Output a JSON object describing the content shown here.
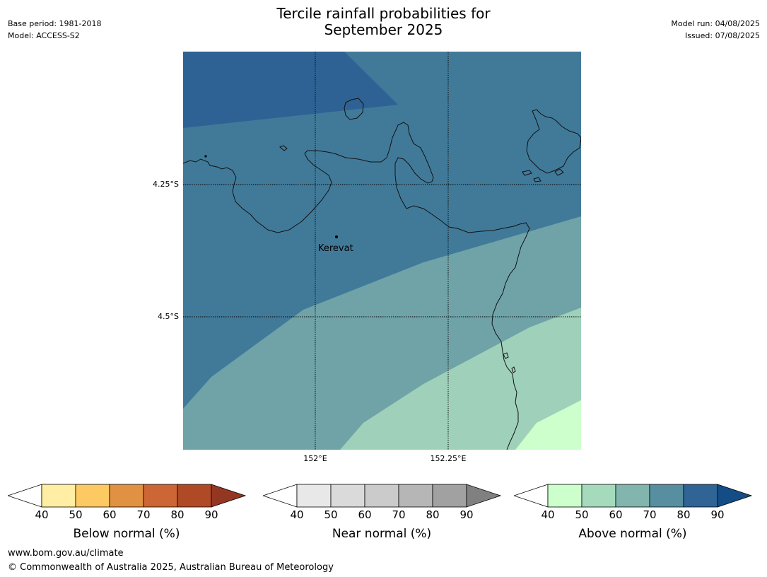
{
  "title": {
    "line1": "Tercile rainfall probabilities for",
    "line2": "September 2025"
  },
  "meta_left": {
    "base_period": "Base period: 1981-2018",
    "model": "Model: ACCESS-S2"
  },
  "meta_right": {
    "model_run": "Model run: 04/08/2025",
    "issued": "Issued: 07/08/2025"
  },
  "map": {
    "place_label": "Kerevat",
    "lat_labels": [
      "4.25°S",
      "4.5°S"
    ],
    "lon_labels": [
      "152°E",
      "152.25°E"
    ],
    "fill_colors": {
      "above_80": "#2e6294",
      "above_70": "#417a99",
      "above_60": "#6fa3a8",
      "above_50": "#9fd0ba",
      "above_40": "#ccffcc"
    }
  },
  "colorbars": [
    {
      "label": "Below normal (%)",
      "ticks": [
        "40",
        "50",
        "60",
        "70",
        "80",
        "90"
      ],
      "colors": [
        "#ffeea3",
        "#fdc962",
        "#e09142",
        "#cc6634",
        "#b04a26"
      ],
      "low_extend": "#ffffff",
      "high_extend": "#943722"
    },
    {
      "label": "Near normal (%)",
      "ticks": [
        "40",
        "50",
        "60",
        "70",
        "80",
        "90"
      ],
      "colors": [
        "#e8e8e8",
        "#dadada",
        "#cbcbcb",
        "#b6b6b6",
        "#a1a1a1"
      ],
      "low_extend": "#ffffff",
      "high_extend": "#808080"
    },
    {
      "label": "Above normal (%)",
      "ticks": [
        "40",
        "50",
        "60",
        "70",
        "80",
        "90"
      ],
      "colors": [
        "#ccffcc",
        "#a5dbbc",
        "#81b5ad",
        "#588fa0",
        "#2f6495"
      ],
      "low_extend": "#ffffff",
      "high_extend": "#144c85"
    }
  ],
  "footer": {
    "url": "www.bom.gov.au/climate",
    "copyright": "© Commonwealth of Australia 2025, Australian Bureau of Meteorology"
  }
}
